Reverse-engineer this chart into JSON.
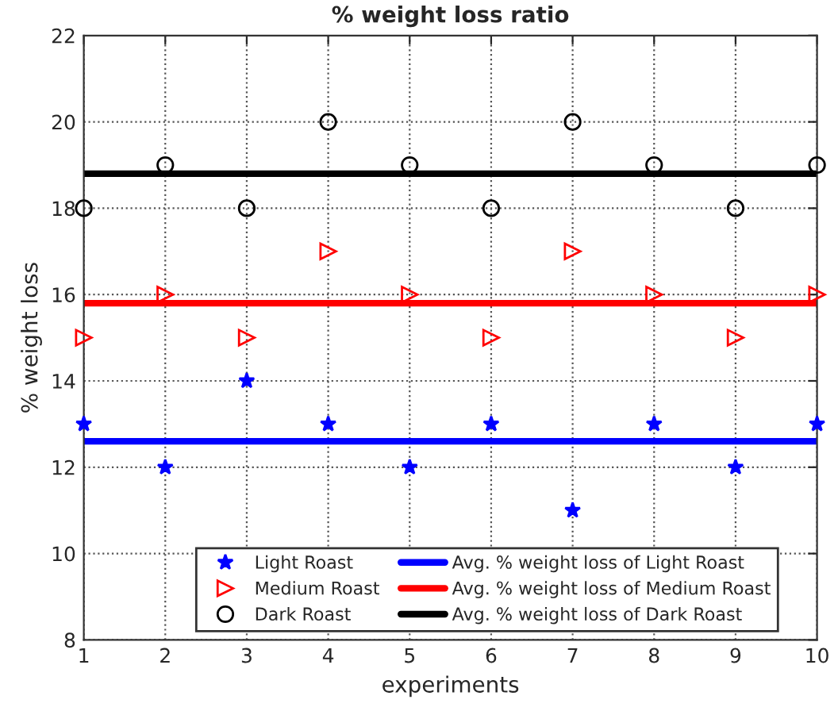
{
  "chart_data": {
    "type": "scatter",
    "title": "% weight loss ratio",
    "xlabel": "experiments",
    "ylabel": "% weight loss",
    "x": [
      1,
      2,
      3,
      4,
      5,
      6,
      7,
      8,
      9,
      10
    ],
    "series": [
      {
        "name": "Light Roast",
        "marker": "star",
        "color": "#0000ff",
        "values": [
          13,
          12,
          14,
          13,
          12,
          13,
          11,
          13,
          12,
          13
        ]
      },
      {
        "name": "Medium Roast",
        "marker": "triangle",
        "color": "#ff0000",
        "values": [
          15,
          16,
          15,
          17,
          16,
          15,
          17,
          16,
          15,
          16
        ]
      },
      {
        "name": "Dark Roast",
        "marker": "circle",
        "color": "#000000",
        "values": [
          18,
          19,
          18,
          20,
          19,
          18,
          20,
          19,
          18,
          19
        ]
      },
      {
        "name": "Avg. % weight loss of Light Roast",
        "type": "line",
        "line_style": "solid",
        "color": "#0000ff",
        "values": [
          12.6,
          12.6,
          12.6,
          12.6,
          12.6,
          12.6,
          12.6,
          12.6,
          12.6,
          12.6
        ]
      },
      {
        "name": "Avg. % weight loss of Medium Roast",
        "type": "line",
        "line_style": "solid",
        "color": "#ff0000",
        "values": [
          15.8,
          15.8,
          15.8,
          15.8,
          15.8,
          15.8,
          15.8,
          15.8,
          15.8,
          15.8
        ]
      },
      {
        "name": "Avg. % weight loss of Dark Roast",
        "type": "line",
        "line_style": "solid",
        "color": "#000000",
        "values": [
          18.8,
          18.8,
          18.8,
          18.8,
          18.8,
          18.8,
          18.8,
          18.8,
          18.8,
          18.8
        ]
      }
    ],
    "xlim": [
      1,
      10
    ],
    "xticks": [
      1,
      2,
      3,
      4,
      5,
      6,
      7,
      8,
      9,
      10
    ],
    "ylim": [
      8,
      22
    ],
    "yticks": [
      8,
      10,
      12,
      14,
      16,
      18,
      20,
      22
    ],
    "grid": true,
    "legend": "bottom"
  }
}
